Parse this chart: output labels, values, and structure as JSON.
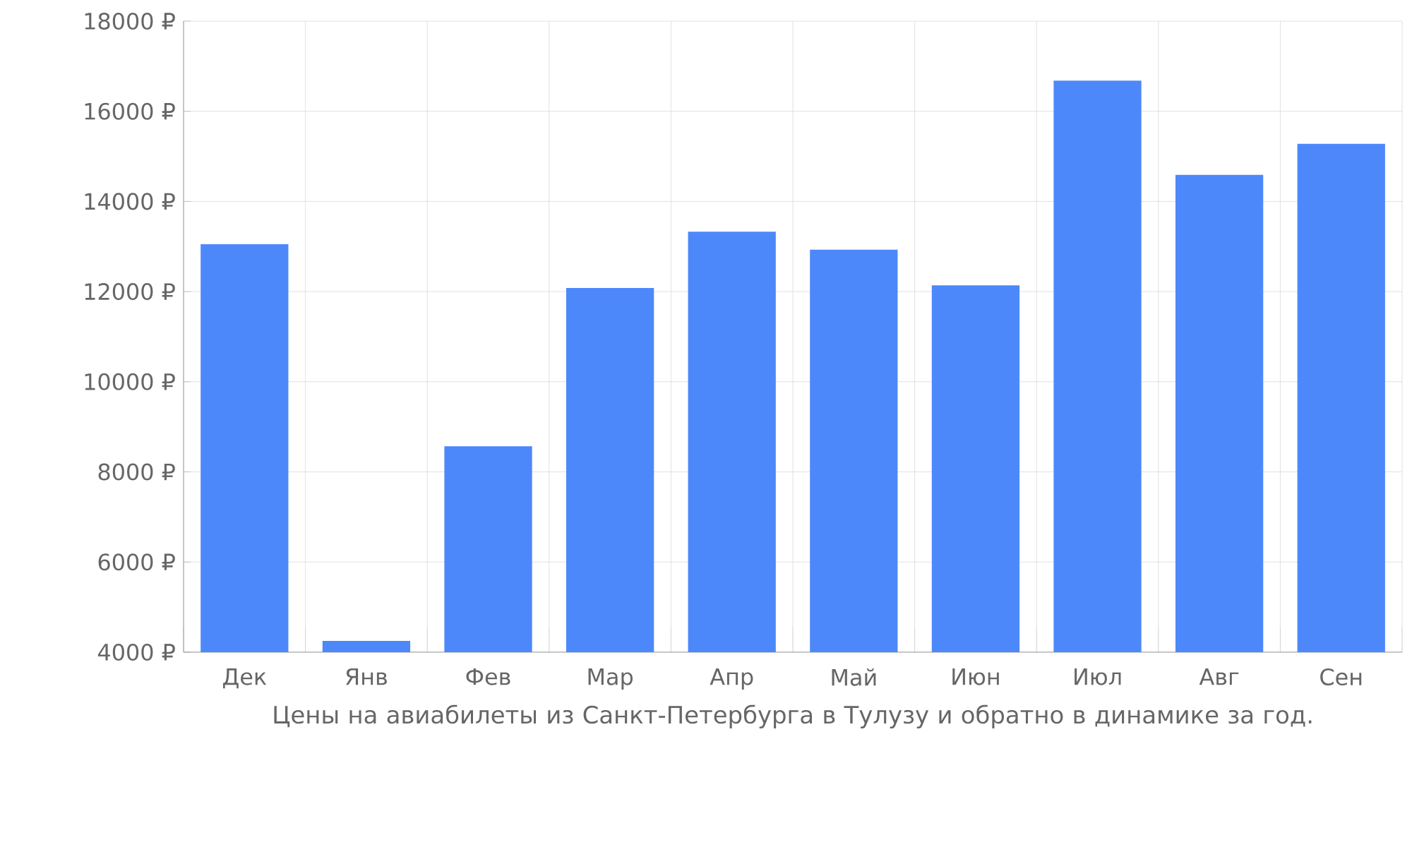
{
  "chart_data": {
    "type": "bar",
    "xlabel": "Цены на авиабилеты из Санкт-Петербурга в Тулузу и обратно в динамике за год.",
    "categories": [
      "Дек",
      "Янв",
      "Фев",
      "Мар",
      "Апр",
      "Май",
      "Июн",
      "Июл",
      "Авг",
      "Сен"
    ],
    "values": [
      13050,
      4250,
      8570,
      12080,
      13330,
      12930,
      12140,
      16680,
      14590,
      15280
    ],
    "color": "#4d88fb",
    "ylim": [
      4000,
      18000
    ],
    "yticks": [
      {
        "value": 4000,
        "label": "4000 ₽"
      },
      {
        "value": 6000,
        "label": "6000 ₽"
      },
      {
        "value": 8000,
        "label": "8000 ₽"
      },
      {
        "value": 10000,
        "label": "10000 ₽"
      },
      {
        "value": 12000,
        "label": "12000 ₽"
      },
      {
        "value": 14000,
        "label": "14000 ₽"
      },
      {
        "value": 16000,
        "label": "16000 ₽"
      },
      {
        "value": 18000,
        "label": "18000 ₽"
      }
    ],
    "grid": true
  }
}
